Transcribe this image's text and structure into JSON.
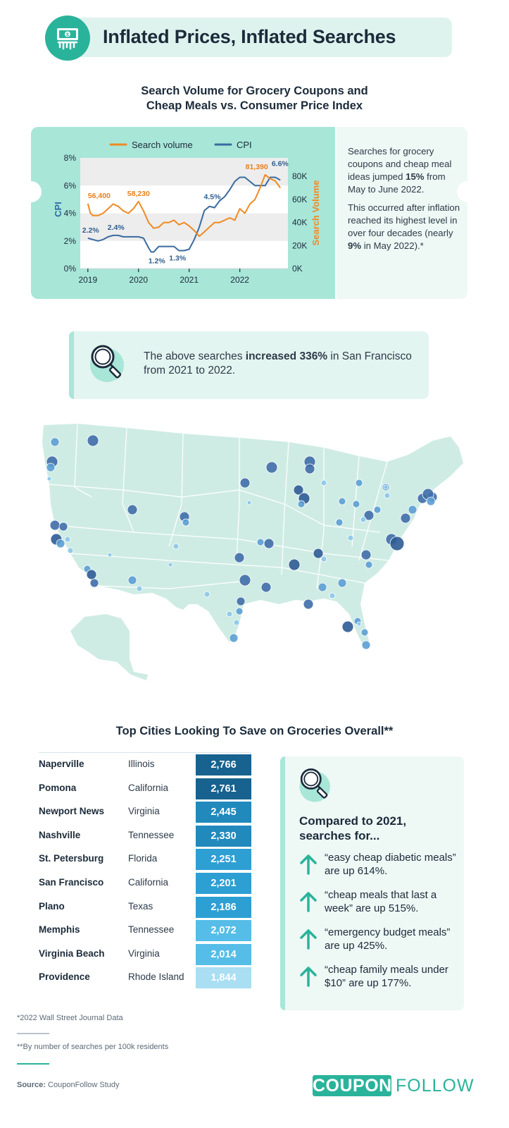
{
  "header": {
    "title": "Inflated Prices, Inflated Searches"
  },
  "chart_title": {
    "line1": "Search Volume for Grocery Coupons and",
    "line2": "Cheap Meals vs. Consumer Price Index"
  },
  "chart_data": {
    "type": "line",
    "legend": {
      "search": "Search volume",
      "cpi": "CPI",
      "placement": "top"
    },
    "ylabel_left": "CPI",
    "ylabel_right": "Search Volume",
    "left_ticks": [
      "0%",
      "2%",
      "4%",
      "6%",
      "8%"
    ],
    "right_ticks": [
      "0K",
      "20K",
      "40K",
      "60K",
      "80K"
    ],
    "x_ticks": [
      "2019",
      "2020",
      "2021",
      "2022"
    ],
    "ylim_left": [
      0,
      8
    ],
    "ylim_right": [
      0,
      96000
    ],
    "series": [
      {
        "name": "CPI",
        "axis": "left",
        "color": "#3a6b9f",
        "x": [
          2019.0,
          2019.1,
          2019.2,
          2019.3,
          2019.4,
          2019.5,
          2019.6,
          2019.7,
          2019.8,
          2019.9,
          2020.0,
          2020.1,
          2020.2,
          2020.25,
          2020.3,
          2020.4,
          2020.5,
          2020.6,
          2020.7,
          2020.8,
          2020.9,
          2021.0,
          2021.1,
          2021.2,
          2021.25,
          2021.3,
          2021.4,
          2021.5,
          2021.6,
          2021.7,
          2021.8,
          2021.9,
          2022.0,
          2022.1,
          2022.2,
          2022.3,
          2022.4,
          2022.5,
          2022.6,
          2022.7,
          2022.8
        ],
        "y": [
          2.2,
          2.1,
          2.0,
          2.1,
          2.3,
          2.4,
          2.4,
          2.3,
          2.3,
          2.3,
          2.3,
          2.2,
          1.5,
          1.2,
          1.2,
          1.6,
          1.6,
          1.6,
          1.6,
          1.3,
          1.3,
          1.4,
          2.1,
          3.0,
          3.6,
          4.2,
          4.5,
          4.4,
          4.9,
          5.2,
          5.7,
          6.3,
          6.6,
          6.6,
          6.3,
          6.0,
          6.0,
          6.0,
          6.6,
          6.6,
          6.4
        ]
      },
      {
        "name": "Search volume",
        "axis": "right",
        "color": "#f08a24",
        "x": [
          2019.0,
          2019.05,
          2019.1,
          2019.2,
          2019.3,
          2019.4,
          2019.5,
          2019.6,
          2019.7,
          2019.8,
          2019.9,
          2020.0,
          2020.1,
          2020.2,
          2020.3,
          2020.4,
          2020.5,
          2020.6,
          2020.7,
          2020.8,
          2020.9,
          2021.0,
          2021.1,
          2021.2,
          2021.3,
          2021.4,
          2021.5,
          2021.6,
          2021.7,
          2021.8,
          2021.9,
          2022.0,
          2022.1,
          2022.2,
          2022.3,
          2022.4,
          2022.5,
          2022.6,
          2022.7,
          2022.8
        ],
        "y": [
          56400,
          48000,
          46000,
          46000,
          48000,
          52000,
          56000,
          54000,
          50000,
          48000,
          52000,
          58230,
          50000,
          40000,
          35000,
          36000,
          40000,
          40000,
          42000,
          38000,
          40000,
          37000,
          33000,
          28000,
          32000,
          36000,
          40000,
          40000,
          42000,
          44000,
          42000,
          52000,
          48000,
          56000,
          60000,
          70000,
          81390,
          78000,
          76000,
          70000
        ]
      }
    ],
    "annotations": [
      {
        "text": "56,400",
        "series": "Search volume"
      },
      {
        "text": "58,230",
        "series": "Search volume"
      },
      {
        "text": "81,390",
        "series": "Search volume"
      },
      {
        "text": "2.2%",
        "series": "CPI"
      },
      {
        "text": "2.4%",
        "series": "CPI"
      },
      {
        "text": "1.2%",
        "series": "CPI"
      },
      {
        "text": "1.3%",
        "series": "CPI"
      },
      {
        "text": "4.5%",
        "series": "CPI"
      },
      {
        "text": "6.6%",
        "series": "CPI"
      }
    ]
  },
  "side_note": {
    "p1_a": "Searches for grocery coupons and cheap meal ideas jumped ",
    "p1_b": "15%",
    "p1_c": " from May to June 2022.",
    "p2_a": "This occurred after inflation reached its highest level in over four decades (nearly ",
    "p2_b": "9%",
    "p2_c": " in May 2022).*"
  },
  "callout": {
    "a": "The above searches ",
    "b": "increased 336%",
    "c": " in San Francisco from 2021 to 2022."
  },
  "table": {
    "title": "Top Cities Looking To Save on Groceries Overall**",
    "rows": [
      {
        "city": "Naperville",
        "state": "Illinois",
        "value": "2,766",
        "color": "#17628f"
      },
      {
        "city": "Pomona",
        "state": "California",
        "value": "2,761",
        "color": "#17628f"
      },
      {
        "city": "Newport News",
        "state": "Virginia",
        "value": "2,445",
        "color": "#2289bd"
      },
      {
        "city": "Nashville",
        "state": "Tennessee",
        "value": "2,330",
        "color": "#2289bd"
      },
      {
        "city": "St. Petersburg",
        "state": "Florida",
        "value": "2,251",
        "color": "#2e9fd3"
      },
      {
        "city": "San Francisco",
        "state": "California",
        "value": "2,201",
        "color": "#2e9fd3"
      },
      {
        "city": "Plano",
        "state": "Texas",
        "value": "2,186",
        "color": "#2e9fd3"
      },
      {
        "city": "Memphis",
        "state": "Tennessee",
        "value": "2,072",
        "color": "#55bde7"
      },
      {
        "city": "Virginia Beach",
        "state": "Virginia",
        "value": "2,014",
        "color": "#55bde7"
      },
      {
        "city": "Providence",
        "state": "Rhode Island",
        "value": "1,844",
        "color": "#a9def3"
      }
    ]
  },
  "compare": {
    "head1": "Compared to 2021,",
    "head2": "searches for...",
    "items": [
      {
        "q": "“easy cheap diabetic meals”",
        "tail": " are up 614%."
      },
      {
        "q": "“cheap meals that last a week”",
        "tail": " are up 515%."
      },
      {
        "q": "“emergency budget meals”",
        "tail": " are up 425%."
      },
      {
        "q": "“cheap family meals under $10”",
        "tail": " are up 177%."
      }
    ]
  },
  "footer": {
    "note1": "*2022 Wall Street Journal Data",
    "note2": "**By number of searches per 100k residents",
    "source_label": "Source:",
    "source_value": "CouponFollow Study",
    "logo_a": "COUPON",
    "logo_b": "FOLLOW"
  },
  "colors": {
    "teal": "#2ab39b",
    "mint": "#a8e6d8",
    "cpi": "#3a6b9f",
    "search": "#f08a24"
  }
}
